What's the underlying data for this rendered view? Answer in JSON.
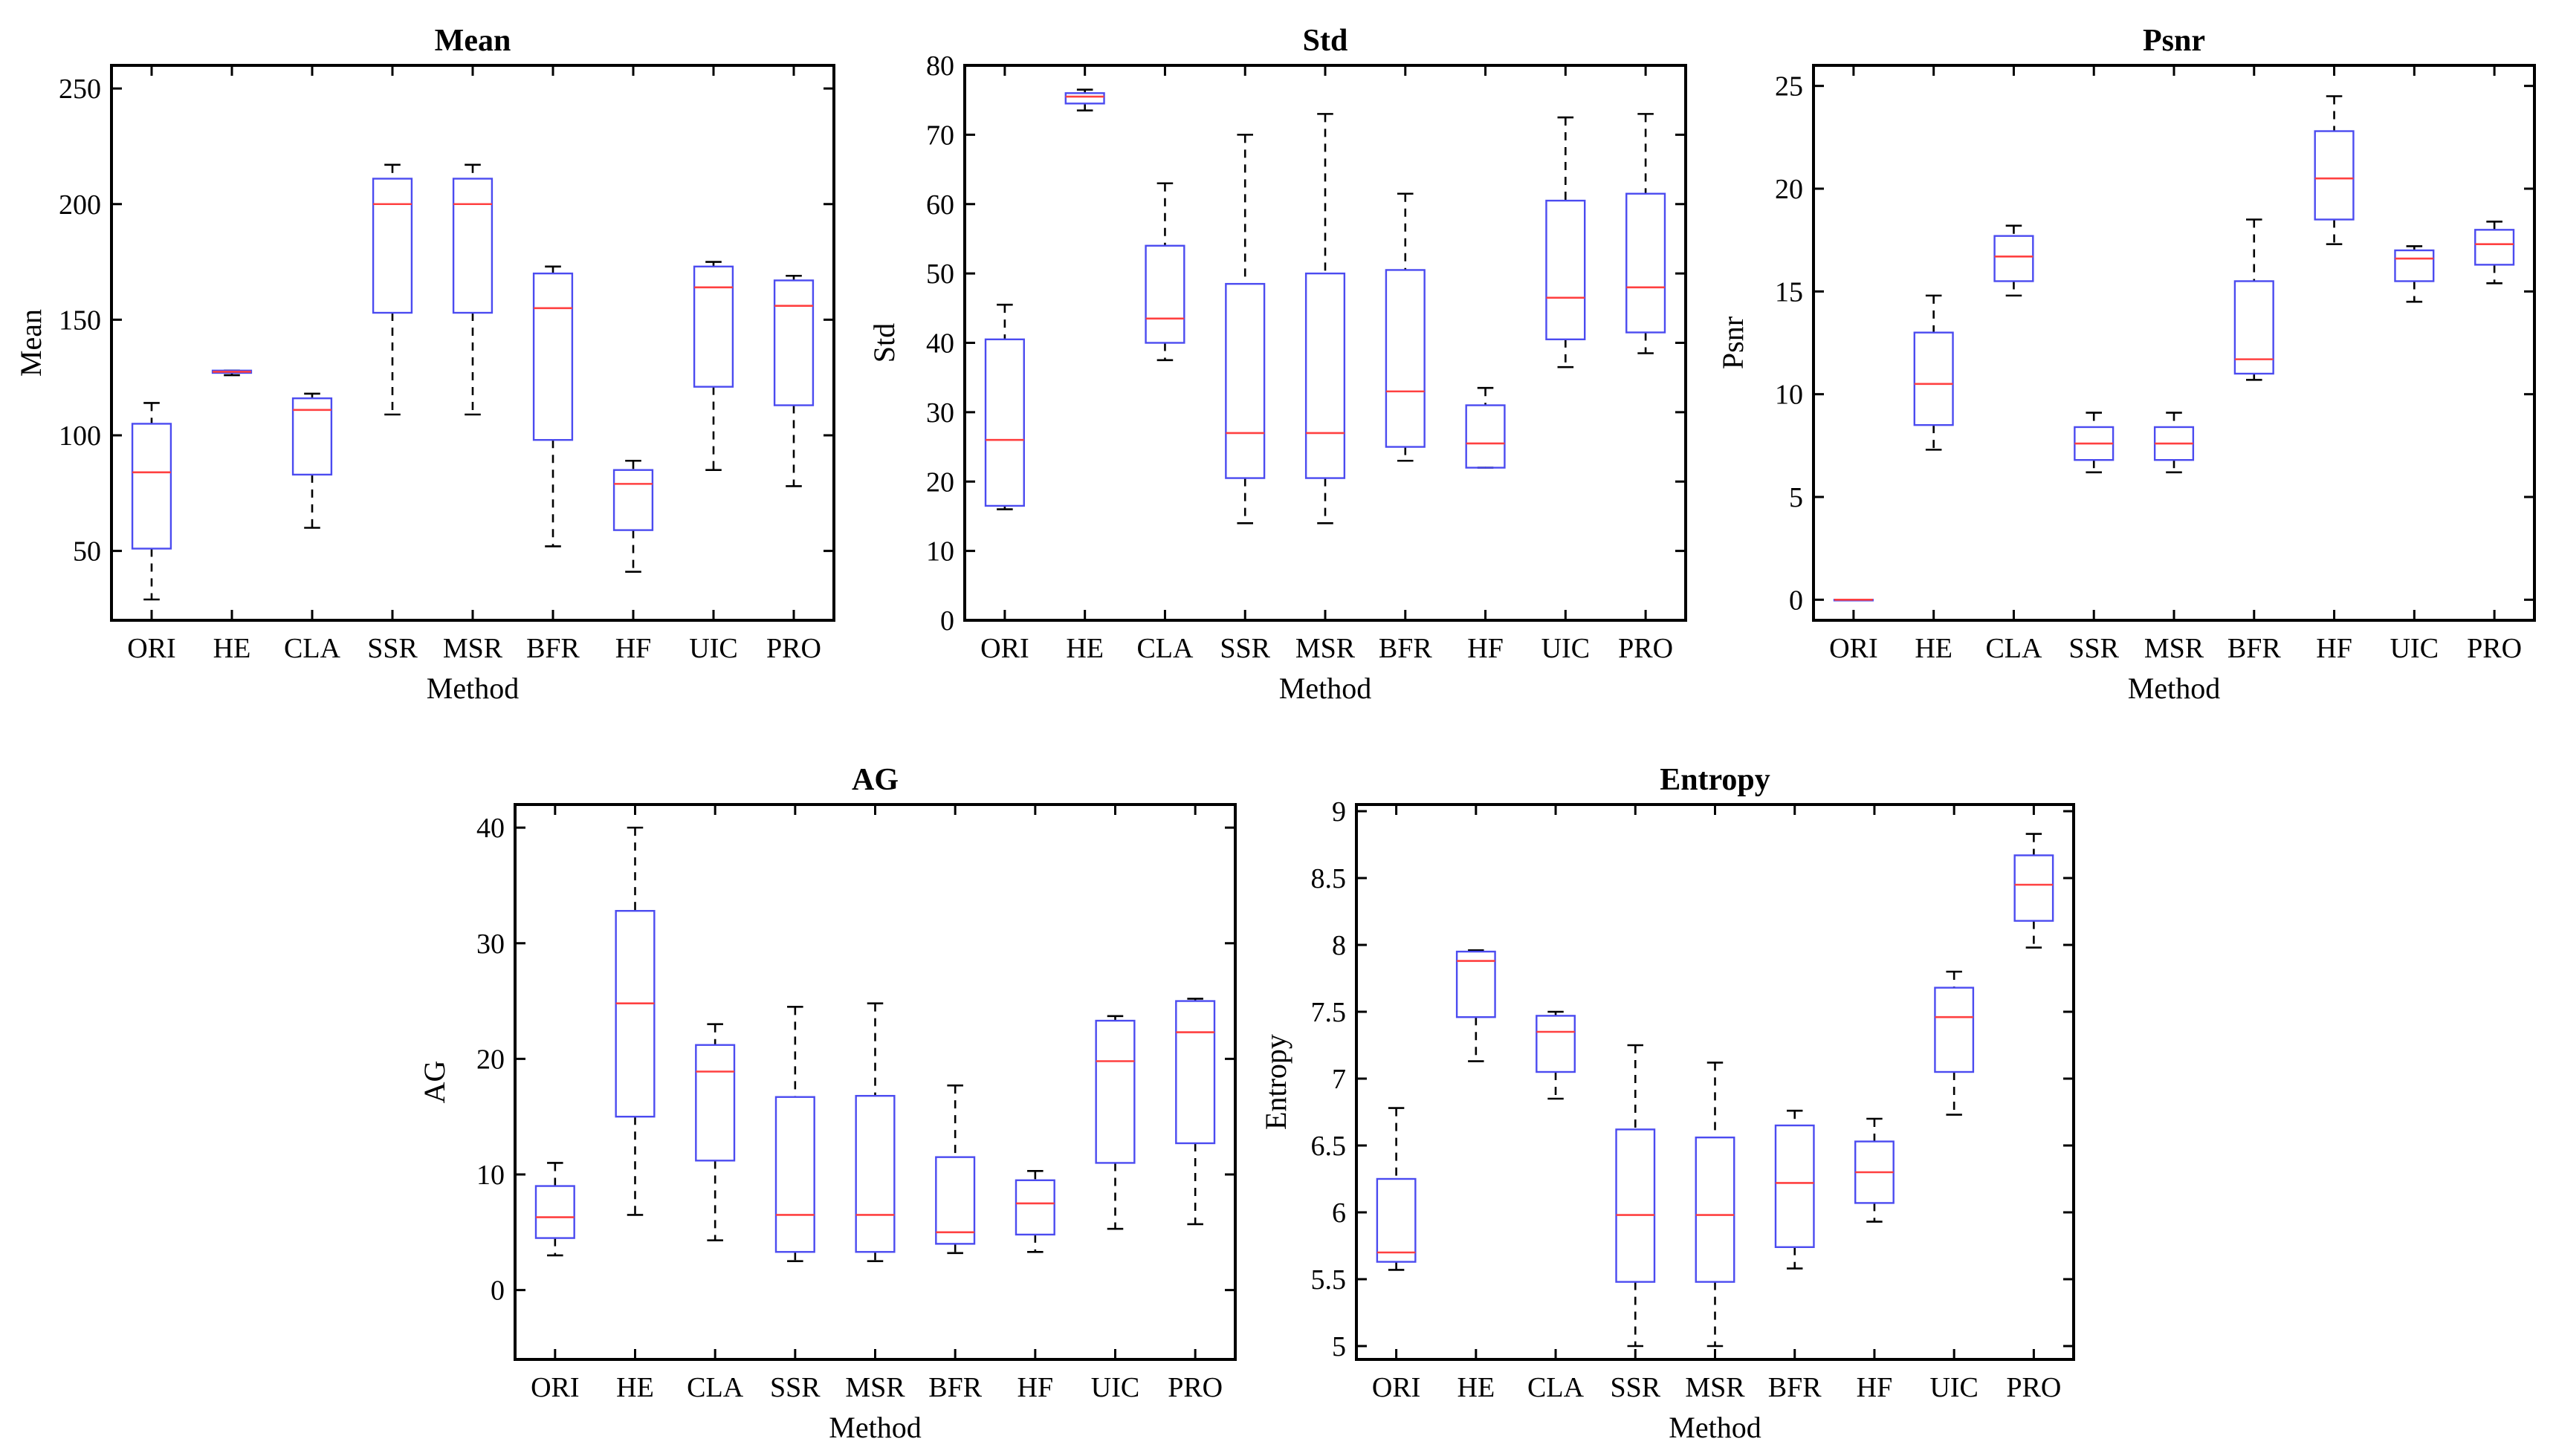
{
  "chart_data": [
    {
      "type": "boxplot",
      "title": "Mean",
      "xlabel": "Method",
      "ylabel": "Mean",
      "ylim": [
        20,
        260
      ],
      "yticks": [
        50,
        100,
        150,
        200,
        250
      ],
      "categories": [
        "ORI",
        "HE",
        "CLA",
        "SSR",
        "MSR",
        "BFR",
        "HF",
        "UIC",
        "PRO"
      ],
      "boxes": [
        {
          "min": 29,
          "q1": 51,
          "median": 84,
          "q3": 105,
          "max": 114
        },
        {
          "min": 126,
          "q1": 127,
          "median": 127.5,
          "q3": 128,
          "max": 128
        },
        {
          "min": 60,
          "q1": 83,
          "median": 111,
          "q3": 116,
          "max": 118
        },
        {
          "min": 109,
          "q1": 153,
          "median": 200,
          "q3": 211,
          "max": 217
        },
        {
          "min": 109,
          "q1": 153,
          "median": 200,
          "q3": 211,
          "max": 217
        },
        {
          "min": 52,
          "q1": 98,
          "median": 155,
          "q3": 170,
          "max": 173
        },
        {
          "min": 41,
          "q1": 59,
          "median": 79,
          "q3": 85,
          "max": 89
        },
        {
          "min": 85,
          "q1": 121,
          "median": 164,
          "q3": 173,
          "max": 175
        },
        {
          "min": 78,
          "q1": 113,
          "median": 156,
          "q3": 167,
          "max": 169
        }
      ]
    },
    {
      "type": "boxplot",
      "title": "Std",
      "xlabel": "Method",
      "ylabel": "Std",
      "ylim": [
        0,
        80
      ],
      "yticks": [
        0,
        10,
        20,
        30,
        40,
        50,
        60,
        70,
        80
      ],
      "categories": [
        "ORI",
        "HE",
        "CLA",
        "SSR",
        "MSR",
        "BFR",
        "HF",
        "UIC",
        "PRO"
      ],
      "boxes": [
        {
          "min": 16,
          "q1": 16.5,
          "median": 26,
          "q3": 40.5,
          "max": 45.5
        },
        {
          "min": 73.5,
          "q1": 74.5,
          "median": 75.5,
          "q3": 76,
          "max": 76.5
        },
        {
          "min": 37.5,
          "q1": 40,
          "median": 43.5,
          "q3": 54,
          "max": 63
        },
        {
          "min": 14,
          "q1": 20.5,
          "median": 27,
          "q3": 48.5,
          "max": 70
        },
        {
          "min": 14,
          "q1": 20.5,
          "median": 27,
          "q3": 50,
          "max": 73
        },
        {
          "min": 23,
          "q1": 25,
          "median": 33,
          "q3": 50.5,
          "max": 61.5
        },
        {
          "min": 22,
          "q1": 22,
          "median": 25.5,
          "q3": 31,
          "max": 33.5
        },
        {
          "min": 36.5,
          "q1": 40.5,
          "median": 46.5,
          "q3": 60.5,
          "max": 72.5
        },
        {
          "min": 38.5,
          "q1": 41.5,
          "median": 48,
          "q3": 61.5,
          "max": 73
        }
      ]
    },
    {
      "type": "boxplot",
      "title": "Psnr",
      "xlabel": "Method",
      "ylabel": "Psnr",
      "ylim": [
        -1,
        26
      ],
      "yticks": [
        0,
        5,
        10,
        15,
        20,
        25
      ],
      "categories": [
        "ORI",
        "HE",
        "CLA",
        "SSR",
        "MSR",
        "BFR",
        "HF",
        "UIC",
        "PRO"
      ],
      "boxes": [
        {
          "min": 0,
          "q1": 0,
          "median": 0,
          "q3": 0,
          "max": 0
        },
        {
          "min": 7.3,
          "q1": 8.5,
          "median": 10.5,
          "q3": 13,
          "max": 14.8
        },
        {
          "min": 14.8,
          "q1": 15.5,
          "median": 16.7,
          "q3": 17.7,
          "max": 18.2
        },
        {
          "min": 6.2,
          "q1": 6.8,
          "median": 7.6,
          "q3": 8.4,
          "max": 9.1
        },
        {
          "min": 6.2,
          "q1": 6.8,
          "median": 7.6,
          "q3": 8.4,
          "max": 9.1
        },
        {
          "min": 10.7,
          "q1": 11,
          "median": 11.7,
          "q3": 15.5,
          "max": 18.5
        },
        {
          "min": 17.3,
          "q1": 18.5,
          "median": 20.5,
          "q3": 22.8,
          "max": 24.5
        },
        {
          "min": 14.5,
          "q1": 15.5,
          "median": 16.6,
          "q3": 17,
          "max": 17.2
        },
        {
          "min": 15.4,
          "q1": 16.3,
          "median": 17.3,
          "q3": 18,
          "max": 18.4
        }
      ]
    },
    {
      "type": "boxplot",
      "title": "AG",
      "xlabel": "Method",
      "ylabel": "AG",
      "ylim": [
        -6,
        42
      ],
      "yticks": [
        0,
        10,
        20,
        30,
        40
      ],
      "categories": [
        "ORI",
        "HE",
        "CLA",
        "SSR",
        "MSR",
        "BFR",
        "HF",
        "UIC",
        "PRO"
      ],
      "boxes": [
        {
          "min": 3,
          "q1": 4.5,
          "median": 6.3,
          "q3": 9,
          "max": 11
        },
        {
          "min": 6.5,
          "q1": 15,
          "median": 24.8,
          "q3": 32.8,
          "max": 40
        },
        {
          "min": 4.3,
          "q1": 11.2,
          "median": 18.9,
          "q3": 21.2,
          "max": 23
        },
        {
          "min": 2.5,
          "q1": 3.3,
          "median": 6.5,
          "q3": 16.7,
          "max": 24.5
        },
        {
          "min": 2.5,
          "q1": 3.3,
          "median": 6.5,
          "q3": 16.8,
          "max": 24.8
        },
        {
          "min": 3.2,
          "q1": 4,
          "median": 5,
          "q3": 11.5,
          "max": 17.7
        },
        {
          "min": 3.3,
          "q1": 4.8,
          "median": 7.5,
          "q3": 9.5,
          "max": 10.3
        },
        {
          "min": 5.3,
          "q1": 11,
          "median": 19.8,
          "q3": 23.3,
          "max": 23.7
        },
        {
          "min": 5.7,
          "q1": 12.7,
          "median": 22.3,
          "q3": 25,
          "max": 25.2
        }
      ]
    },
    {
      "type": "boxplot",
      "title": "Entropy",
      "xlabel": "Method",
      "ylabel": "Entropy",
      "ylim": [
        4.9,
        9.05
      ],
      "yticks": [
        5,
        5.5,
        6,
        6.5,
        7,
        7.5,
        8,
        8.5,
        9
      ],
      "categories": [
        "ORI",
        "HE",
        "CLA",
        "SSR",
        "MSR",
        "BFR",
        "HF",
        "UIC",
        "PRO"
      ],
      "boxes": [
        {
          "min": 5.57,
          "q1": 5.63,
          "median": 5.7,
          "q3": 6.25,
          "max": 6.78
        },
        {
          "min": 7.13,
          "q1": 7.46,
          "median": 7.88,
          "q3": 7.95,
          "max": 7.96
        },
        {
          "min": 6.85,
          "q1": 7.05,
          "median": 7.35,
          "q3": 7.47,
          "max": 7.5
        },
        {
          "min": 5,
          "q1": 5.48,
          "median": 5.98,
          "q3": 6.62,
          "max": 7.25
        },
        {
          "min": 5,
          "q1": 5.48,
          "median": 5.98,
          "q3": 6.56,
          "max": 7.12
        },
        {
          "min": 5.58,
          "q1": 5.74,
          "median": 6.22,
          "q3": 6.65,
          "max": 6.76
        },
        {
          "min": 5.93,
          "q1": 6.07,
          "median": 6.3,
          "q3": 6.53,
          "max": 6.7
        },
        {
          "min": 6.73,
          "q1": 7.05,
          "median": 7.46,
          "q3": 7.68,
          "max": 7.8
        },
        {
          "min": 7.98,
          "q1": 8.18,
          "median": 8.45,
          "q3": 8.67,
          "max": 8.83
        }
      ]
    }
  ]
}
